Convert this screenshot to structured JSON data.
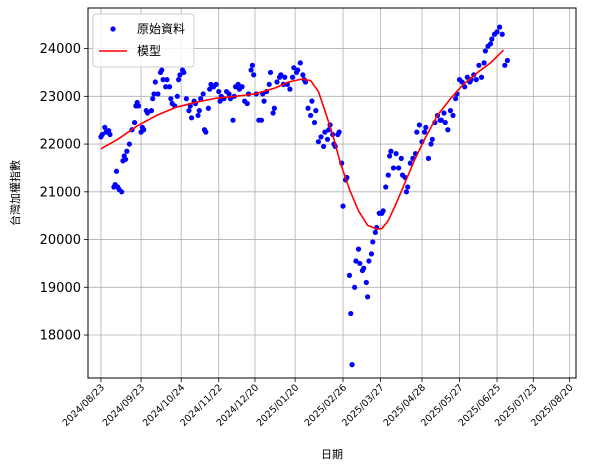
{
  "chart_data": {
    "type": "scatter",
    "xlabel": "日期",
    "ylabel": "台灣加權指數",
    "ylim": [
      17100,
      24850
    ],
    "yticks": [
      18000,
      19000,
      20000,
      21000,
      22000,
      23000,
      24000
    ],
    "xlim": [
      "2024-08-13",
      "2025-08-25"
    ],
    "xticks": [
      "2024/08/23",
      "2024/09/23",
      "2024/10/24",
      "2024/11/22",
      "2024/12/20",
      "2025/01/20",
      "2025/02/26",
      "2025/03/27",
      "2025/04/28",
      "2025/05/27",
      "2025/06/25",
      "2025/07/23",
      "2025/08/20"
    ],
    "grid": true,
    "legend_position": "top-left",
    "colors": {
      "points": "#0000ff",
      "model": "#ff0000"
    },
    "series": [
      {
        "name": "原始資料",
        "kind": "scatter",
        "points": [
          [
            "2024-08-23",
            22150
          ],
          [
            "2024-08-24",
            22200
          ],
          [
            "2024-08-26",
            22350
          ],
          [
            "2024-08-27",
            22250
          ],
          [
            "2024-08-29",
            22280
          ],
          [
            "2024-08-30",
            22200
          ],
          [
            "2024-09-02",
            21100
          ],
          [
            "2024-09-03",
            21150
          ],
          [
            "2024-09-04",
            21430
          ],
          [
            "2024-09-05",
            21100
          ],
          [
            "2024-09-06",
            21050
          ],
          [
            "2024-09-08",
            21000
          ],
          [
            "2024-09-09",
            21650
          ],
          [
            "2024-09-10",
            21750
          ],
          [
            "2024-09-11",
            21680
          ],
          [
            "2024-09-12",
            21850
          ],
          [
            "2024-09-14",
            22000
          ],
          [
            "2024-09-16",
            22300
          ],
          [
            "2024-09-18",
            22450
          ],
          [
            "2024-09-19",
            22800
          ],
          [
            "2024-09-20",
            22870
          ],
          [
            "2024-09-21",
            22800
          ],
          [
            "2024-09-23",
            22250
          ],
          [
            "2024-09-24",
            22350
          ],
          [
            "2024-09-25",
            22300
          ],
          [
            "2024-09-27",
            22700
          ],
          [
            "2024-09-28",
            22650
          ],
          [
            "2024-10-01",
            22700
          ],
          [
            "2024-10-02",
            22950
          ],
          [
            "2024-10-03",
            23050
          ],
          [
            "2024-10-04",
            23300
          ],
          [
            "2024-10-06",
            23050
          ],
          [
            "2024-10-08",
            23500
          ],
          [
            "2024-10-09",
            23550
          ],
          [
            "2024-10-10",
            23350
          ],
          [
            "2024-10-12",
            23200
          ],
          [
            "2024-10-13",
            23350
          ],
          [
            "2024-10-15",
            23200
          ],
          [
            "2024-10-16",
            22950
          ],
          [
            "2024-10-17",
            22850
          ],
          [
            "2024-10-19",
            22800
          ],
          [
            "2024-10-21",
            23000
          ],
          [
            "2024-10-22",
            23350
          ],
          [
            "2024-10-23",
            23450
          ],
          [
            "2024-10-25",
            23550
          ],
          [
            "2024-10-26",
            23500
          ],
          [
            "2024-10-28",
            22950
          ],
          [
            "2024-10-30",
            22700
          ],
          [
            "2024-10-31",
            22800
          ],
          [
            "2024-11-01",
            22550
          ],
          [
            "2024-11-03",
            22900
          ],
          [
            "2024-11-04",
            22850
          ],
          [
            "2024-11-06",
            22600
          ],
          [
            "2024-11-07",
            22700
          ],
          [
            "2024-11-08",
            22950
          ],
          [
            "2024-11-10",
            23050
          ],
          [
            "2024-11-11",
            22300
          ],
          [
            "2024-11-12",
            22250
          ],
          [
            "2024-11-14",
            22750
          ],
          [
            "2024-11-15",
            23150
          ],
          [
            "2024-11-16",
            23250
          ],
          [
            "2024-11-18",
            23200
          ],
          [
            "2024-11-20",
            23250
          ],
          [
            "2024-11-22",
            23100
          ],
          [
            "2024-11-23",
            22900
          ],
          [
            "2024-11-24",
            23000
          ],
          [
            "2024-11-26",
            22950
          ],
          [
            "2024-11-28",
            23100
          ],
          [
            "2024-11-30",
            23050
          ],
          [
            "2024-12-01",
            22950
          ],
          [
            "2024-12-03",
            22500
          ],
          [
            "2024-12-04",
            23000
          ],
          [
            "2024-12-05",
            23200
          ],
          [
            "2024-12-07",
            23250
          ],
          [
            "2024-12-08",
            23150
          ],
          [
            "2024-12-10",
            23200
          ],
          [
            "2024-12-12",
            22900
          ],
          [
            "2024-12-14",
            22850
          ],
          [
            "2024-12-15",
            23050
          ],
          [
            "2024-12-17",
            23550
          ],
          [
            "2024-12-18",
            23650
          ],
          [
            "2024-12-19",
            23450
          ],
          [
            "2024-12-21",
            23050
          ],
          [
            "2024-12-23",
            22500
          ],
          [
            "2024-12-25",
            22500
          ],
          [
            "2024-12-26",
            23050
          ],
          [
            "2024-12-27",
            22900
          ],
          [
            "2024-12-29",
            23100
          ],
          [
            "2024-12-31",
            23250
          ],
          [
            "2025-01-01",
            23500
          ],
          [
            "2025-01-03",
            22650
          ],
          [
            "2025-01-04",
            22750
          ],
          [
            "2025-01-06",
            23300
          ],
          [
            "2025-01-08",
            23400
          ],
          [
            "2025-01-09",
            23450
          ],
          [
            "2025-01-11",
            23250
          ],
          [
            "2025-01-12",
            23400
          ],
          [
            "2025-01-14",
            23250
          ],
          [
            "2025-01-16",
            23150
          ],
          [
            "2025-01-18",
            23400
          ],
          [
            "2025-01-19",
            23600
          ],
          [
            "2025-01-21",
            23500
          ],
          [
            "2025-01-22",
            23550
          ],
          [
            "2025-01-24",
            23700
          ],
          [
            "2025-01-26",
            23450
          ],
          [
            "2025-01-27",
            23350
          ],
          [
            "2025-01-28",
            23300
          ],
          [
            "2025-01-30",
            22750
          ],
          [
            "2025-02-01",
            22600
          ],
          [
            "2025-02-02",
            22900
          ],
          [
            "2025-02-04",
            22450
          ],
          [
            "2025-02-05",
            22700
          ],
          [
            "2025-02-07",
            22050
          ],
          [
            "2025-02-09",
            22150
          ],
          [
            "2025-02-11",
            21950
          ],
          [
            "2025-02-12",
            22250
          ],
          [
            "2025-02-14",
            22100
          ],
          [
            "2025-02-15",
            22300
          ],
          [
            "2025-02-16",
            22400
          ],
          [
            "2025-02-18",
            22200
          ],
          [
            "2025-02-19",
            22000
          ],
          [
            "2025-02-20",
            21950
          ],
          [
            "2025-02-22",
            22200
          ],
          [
            "2025-02-23",
            22250
          ],
          [
            "2025-02-25",
            21600
          ],
          [
            "2025-02-26",
            20700
          ],
          [
            "2025-02-28",
            21250
          ],
          [
            "2025-03-01",
            21300
          ],
          [
            "2025-03-03",
            19250
          ],
          [
            "2025-03-04",
            18450
          ],
          [
            "2025-03-05",
            17380
          ],
          [
            "2025-03-07",
            19000
          ],
          [
            "2025-03-08",
            19550
          ],
          [
            "2025-03-10",
            19800
          ],
          [
            "2025-03-11",
            19500
          ],
          [
            "2025-03-13",
            19350
          ],
          [
            "2025-03-14",
            19400
          ],
          [
            "2025-03-16",
            19100
          ],
          [
            "2025-03-17",
            18800
          ],
          [
            "2025-03-18",
            19550
          ],
          [
            "2025-03-20",
            19700
          ],
          [
            "2025-03-21",
            19950
          ],
          [
            "2025-03-23",
            20150
          ],
          [
            "2025-03-24",
            20250
          ],
          [
            "2025-03-26",
            20550
          ],
          [
            "2025-03-28",
            20550
          ],
          [
            "2025-03-29",
            20600
          ],
          [
            "2025-03-31",
            21100
          ],
          [
            "2025-04-02",
            21350
          ],
          [
            "2025-04-03",
            21750
          ],
          [
            "2025-04-04",
            21850
          ],
          [
            "2025-04-06",
            21500
          ],
          [
            "2025-04-08",
            21800
          ],
          [
            "2025-04-10",
            21500
          ],
          [
            "2025-04-12",
            21700
          ],
          [
            "2025-04-13",
            21350
          ],
          [
            "2025-04-15",
            21300
          ],
          [
            "2025-04-16",
            21000
          ],
          [
            "2025-04-17",
            21100
          ],
          [
            "2025-04-19",
            21600
          ],
          [
            "2025-04-21",
            21700
          ],
          [
            "2025-04-23",
            21800
          ],
          [
            "2025-04-24",
            22250
          ],
          [
            "2025-04-26",
            22400
          ],
          [
            "2025-04-28",
            22050
          ],
          [
            "2025-04-30",
            22250
          ],
          [
            "2025-05-01",
            22350
          ],
          [
            "2025-05-03",
            21700
          ],
          [
            "2025-05-05",
            22000
          ],
          [
            "2025-05-06",
            22100
          ],
          [
            "2025-05-08",
            22450
          ],
          [
            "2025-05-10",
            22600
          ],
          [
            "2025-05-12",
            22500
          ],
          [
            "2025-05-13",
            22500
          ],
          [
            "2025-05-15",
            22650
          ],
          [
            "2025-05-16",
            22450
          ],
          [
            "2025-05-18",
            22300
          ],
          [
            "2025-05-20",
            22700
          ],
          [
            "2025-05-22",
            22600
          ],
          [
            "2025-05-24",
            22950
          ],
          [
            "2025-05-25",
            23050
          ],
          [
            "2025-05-27",
            23350
          ],
          [
            "2025-05-29",
            23300
          ],
          [
            "2025-05-31",
            23200
          ],
          [
            "2025-06-02",
            23400
          ],
          [
            "2025-06-04",
            23300
          ],
          [
            "2025-06-05",
            23350
          ],
          [
            "2025-06-07",
            23450
          ],
          [
            "2025-06-09",
            23350
          ],
          [
            "2025-06-11",
            23650
          ],
          [
            "2025-06-13",
            23400
          ],
          [
            "2025-06-15",
            23700
          ],
          [
            "2025-06-16",
            23950
          ],
          [
            "2025-06-18",
            24050
          ],
          [
            "2025-06-20",
            24100
          ],
          [
            "2025-06-21",
            24200
          ],
          [
            "2025-06-23",
            24300
          ],
          [
            "2025-06-25",
            24350
          ],
          [
            "2025-06-27",
            24450
          ],
          [
            "2025-06-29",
            24300
          ],
          [
            "2025-07-01",
            23650
          ],
          [
            "2025-07-03",
            23750
          ]
        ]
      },
      {
        "name": "模型",
        "kind": "line",
        "points": [
          [
            "2024-08-23",
            21900
          ],
          [
            "2024-09-05",
            22100
          ],
          [
            "2024-09-20",
            22380
          ],
          [
            "2024-10-05",
            22600
          ],
          [
            "2024-10-20",
            22770
          ],
          [
            "2024-11-05",
            22880
          ],
          [
            "2024-11-20",
            22960
          ],
          [
            "2024-12-05",
            23000
          ],
          [
            "2024-12-20",
            23050
          ],
          [
            "2025-01-05",
            23180
          ],
          [
            "2025-01-15",
            23300
          ],
          [
            "2025-01-25",
            23360
          ],
          [
            "2025-02-01",
            23330
          ],
          [
            "2025-02-07",
            23100
          ],
          [
            "2025-02-12",
            22700
          ],
          [
            "2025-02-18",
            22200
          ],
          [
            "2025-02-24",
            21600
          ],
          [
            "2025-03-03",
            21050
          ],
          [
            "2025-03-10",
            20600
          ],
          [
            "2025-03-17",
            20300
          ],
          [
            "2025-03-24",
            20220
          ],
          [
            "2025-03-28",
            20230
          ],
          [
            "2025-04-02",
            20400
          ],
          [
            "2025-04-08",
            20750
          ],
          [
            "2025-04-15",
            21200
          ],
          [
            "2025-04-22",
            21650
          ],
          [
            "2025-04-30",
            22100
          ],
          [
            "2025-05-10",
            22600
          ],
          [
            "2025-05-20",
            22950
          ],
          [
            "2025-05-30",
            23250
          ],
          [
            "2025-06-10",
            23500
          ],
          [
            "2025-06-20",
            23700
          ],
          [
            "2025-06-30",
            23970
          ]
        ]
      }
    ]
  }
}
